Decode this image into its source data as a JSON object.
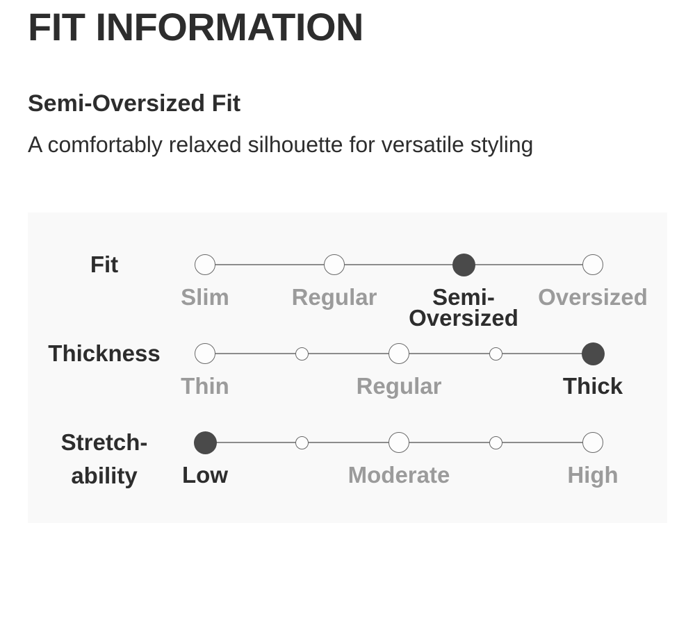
{
  "header": {
    "title": "FIT INFORMATION",
    "fit_name": "Semi-Oversized Fit",
    "fit_description": "A comfortably relaxed silhouette for versatile styling"
  },
  "chart_data": {
    "type": "scale-dots",
    "rows": [
      {
        "label": "Fit",
        "label_lines": [
          "Fit"
        ],
        "selected_value": "Semi-Oversized",
        "points": [
          {
            "size": "large",
            "selected": false
          },
          {
            "size": "large",
            "selected": false
          },
          {
            "size": "large",
            "selected": true
          },
          {
            "size": "large",
            "selected": false
          }
        ],
        "labels": [
          {
            "lines": [
              "Slim"
            ],
            "point_index": 0,
            "selected": false
          },
          {
            "lines": [
              "Regular"
            ],
            "point_index": 1,
            "selected": false
          },
          {
            "lines": [
              "Semi-",
              "Oversized"
            ],
            "point_index": 2,
            "selected": true
          },
          {
            "lines": [
              "Oversized"
            ],
            "point_index": 3,
            "selected": false
          }
        ]
      },
      {
        "label": "Thickness",
        "label_lines": [
          "Thickness"
        ],
        "selected_value": "Thick",
        "points": [
          {
            "size": "large",
            "selected": false
          },
          {
            "size": "small",
            "selected": false
          },
          {
            "size": "large",
            "selected": false
          },
          {
            "size": "small",
            "selected": false
          },
          {
            "size": "large",
            "selected": true
          }
        ],
        "labels": [
          {
            "lines": [
              "Thin"
            ],
            "point_index": 0,
            "selected": false
          },
          {
            "lines": [
              "Regular"
            ],
            "point_index": 2,
            "selected": false
          },
          {
            "lines": [
              "Thick"
            ],
            "point_index": 4,
            "selected": true
          }
        ]
      },
      {
        "label": "Stretch-ability",
        "label_lines": [
          "Stretch-",
          "ability"
        ],
        "selected_value": "Low",
        "points": [
          {
            "size": "large",
            "selected": true
          },
          {
            "size": "small",
            "selected": false
          },
          {
            "size": "large",
            "selected": false
          },
          {
            "size": "small",
            "selected": false
          },
          {
            "size": "large",
            "selected": false
          }
        ],
        "labels": [
          {
            "lines": [
              "Low"
            ],
            "point_index": 0,
            "selected": true
          },
          {
            "lines": [
              "Moderate"
            ],
            "point_index": 2,
            "selected": false
          },
          {
            "lines": [
              "High"
            ],
            "point_index": 4,
            "selected": false
          }
        ]
      }
    ]
  },
  "colors": {
    "text_dark": "#2d2d2d",
    "text_gray": "#9b9b9b",
    "panel_background": "#f9f9f9",
    "dot_fill": "#fdfdfd",
    "dot_border": "#696969",
    "dot_selected_fill": "#4a4a4a",
    "track_line": "#8c8c8c",
    "page_background": "#ffffff"
  }
}
